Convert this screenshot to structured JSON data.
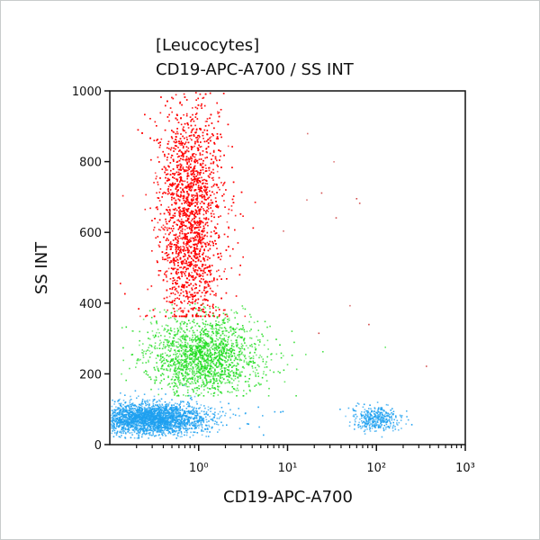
{
  "chart_data": {
    "type": "scatter",
    "title": "[Leucocytes]",
    "subtitle": "CD19-APC-A700 / SS INT",
    "xlabel": "CD19-APC-A700",
    "ylabel": "SS INT",
    "x_scale": "log",
    "xlim": [
      0.1,
      1000
    ],
    "ylim": [
      0,
      1000
    ],
    "x_ticks": [
      {
        "value": 1,
        "label": "10⁰"
      },
      {
        "value": 10,
        "label": "10¹"
      },
      {
        "value": 100,
        "label": "10²"
      },
      {
        "value": 1000,
        "label": "10³"
      }
    ],
    "y_ticks": [
      {
        "value": 0,
        "label": "0"
      },
      {
        "value": 200,
        "label": "200"
      },
      {
        "value": 400,
        "label": "400"
      },
      {
        "value": 600,
        "label": "600"
      },
      {
        "value": 800,
        "label": "800"
      },
      {
        "value": 1000,
        "label": "1000"
      }
    ],
    "grid": false,
    "populations": [
      {
        "color": "#1ea0f0",
        "x_log_center": -0.55,
        "x_log_sd": 0.3,
        "y_center": 75,
        "y_sd": 22,
        "y_min": 20,
        "y_max": 200,
        "count": 2600
      },
      {
        "color": "#22dd22",
        "x_log_center": 0.05,
        "x_log_sd": 0.3,
        "y_center": 250,
        "y_sd": 55,
        "y_min": 140,
        "y_max": 400,
        "count": 1800
      },
      {
        "color": "#ff0000",
        "x_log_center": -0.1,
        "x_log_sd": 0.17,
        "y_center": 640,
        "y_sd": 170,
        "y_min": 365,
        "y_max": 1000,
        "count": 4200
      },
      {
        "color": "#1ea0f0",
        "x_log_center": 2.0,
        "x_log_sd": 0.12,
        "y_center": 75,
        "y_sd": 18,
        "y_min": 20,
        "y_max": 160,
        "count": 350
      },
      {
        "color": "#cc3333",
        "x_log_center": 1.6,
        "x_log_sd": 0.5,
        "y_center": 600,
        "y_sd": 250,
        "y_min": 100,
        "y_max": 1000,
        "count": 12
      }
    ]
  }
}
